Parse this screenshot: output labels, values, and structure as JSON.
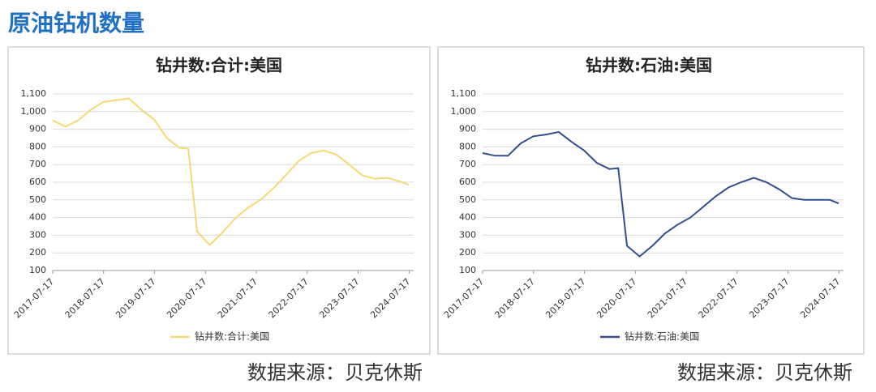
{
  "header": {
    "title": "原油钻机数量"
  },
  "chart_data": [
    {
      "type": "line",
      "title": "钻井数:合计:美国",
      "x": [
        "2017-07-17",
        "2017-10-16",
        "2018-01-15",
        "2018-04-16",
        "2018-07-16",
        "2018-10-15",
        "2019-01-14",
        "2019-04-15",
        "2019-07-15",
        "2019-10-14",
        "2020-01-13",
        "2020-03-16",
        "2020-05-18",
        "2020-08-17",
        "2020-11-16",
        "2021-02-15",
        "2021-05-17",
        "2021-08-16",
        "2021-11-15",
        "2022-02-14",
        "2022-05-16",
        "2022-08-15",
        "2022-11-14",
        "2023-02-13",
        "2023-05-15",
        "2023-08-14",
        "2023-11-13",
        "2024-02-12",
        "2024-05-13",
        "2024-07-15"
      ],
      "series": [
        {
          "name": "钻井数:合计:美国",
          "color": "#f8d775",
          "values": [
            950,
            915,
            950,
            1010,
            1055,
            1065,
            1075,
            1010,
            955,
            850,
            795,
            790,
            320,
            245,
            315,
            395,
            455,
            500,
            565,
            640,
            720,
            765,
            780,
            755,
            700,
            640,
            620,
            625,
            605,
            585
          ]
        }
      ],
      "xlim": [
        "2017-07-17",
        "2024-08-19"
      ],
      "xticks": [
        "2017-07-17",
        "2018-07-17",
        "2019-07-17",
        "2020-07-17",
        "2021-07-17",
        "2022-07-17",
        "2023-07-17",
        "2024-07-17"
      ],
      "ylim": [
        100,
        1100
      ],
      "yticks": [
        100,
        200,
        300,
        400,
        500,
        600,
        700,
        800,
        900,
        {
          "value": 1000,
          "label": "1,000"
        },
        {
          "value": 1100,
          "label": "1,100"
        }
      ],
      "grid": true,
      "legend": "bottom"
    },
    {
      "type": "line",
      "title": "钻井数:石油:美国",
      "x": [
        "2017-07-17",
        "2017-10-16",
        "2018-01-15",
        "2018-04-16",
        "2018-07-16",
        "2018-10-15",
        "2019-01-14",
        "2019-04-15",
        "2019-07-15",
        "2019-10-14",
        "2020-01-13",
        "2020-03-16",
        "2020-05-18",
        "2020-08-17",
        "2020-11-16",
        "2021-02-15",
        "2021-05-17",
        "2021-08-16",
        "2021-11-15",
        "2022-02-14",
        "2022-05-16",
        "2022-08-15",
        "2022-11-14",
        "2023-02-13",
        "2023-05-15",
        "2023-08-14",
        "2023-11-13",
        "2024-02-12",
        "2024-05-13",
        "2024-07-15"
      ],
      "series": [
        {
          "name": "钻井数:石油:美国",
          "color": "#2f4f8f",
          "values": [
            765,
            750,
            750,
            820,
            860,
            870,
            885,
            830,
            780,
            710,
            675,
            680,
            240,
            180,
            240,
            310,
            360,
            400,
            460,
            520,
            570,
            600,
            625,
            600,
            560,
            510,
            500,
            500,
            500,
            480
          ]
        }
      ],
      "xlim": [
        "2017-07-17",
        "2024-08-19"
      ],
      "xticks": [
        "2017-07-17",
        "2018-07-17",
        "2019-07-17",
        "2020-07-17",
        "2021-07-17",
        "2022-07-17",
        "2023-07-17",
        "2024-07-17"
      ],
      "ylim": [
        100,
        1100
      ],
      "yticks": [
        100,
        200,
        300,
        400,
        500,
        600,
        700,
        800,
        900,
        {
          "value": 1000,
          "label": "1,000"
        },
        {
          "value": 1100,
          "label": "1,100"
        }
      ],
      "grid": true,
      "legend": "bottom"
    }
  ],
  "sources": [
    "数据来源：贝克休斯",
    "数据来源：贝克休斯"
  ]
}
